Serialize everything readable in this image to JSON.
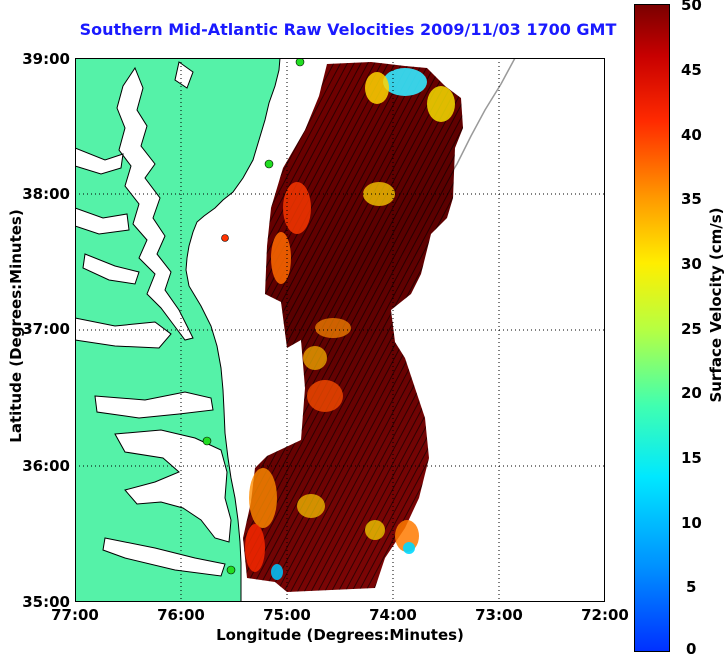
{
  "title": "Southern Mid-Atlantic Raw Velocities 2009/11/03 1700 GMT",
  "x_axis": {
    "label": "Longitude (Degrees:Minutes)",
    "ticks": [
      "77:00",
      "76:00",
      "75:00",
      "74:00",
      "73:00",
      "72:00"
    ]
  },
  "y_axis": {
    "label": "Latitude (Degrees:Minutes)",
    "ticks": [
      "39:00",
      "38:00",
      "37:00",
      "36:00",
      "35:00"
    ]
  },
  "colorbar": {
    "label": "Surface Velocity (cm/s)",
    "ticks": [
      "50",
      "45",
      "40",
      "35",
      "30",
      "25",
      "20",
      "15",
      "10",
      "5",
      "0"
    ],
    "range": [
      0,
      50
    ]
  },
  "map": {
    "lon_range": [
      -77,
      -72
    ],
    "lat_range": [
      35,
      39
    ],
    "land_color": "#55f2a8",
    "coastline_color": "#000000",
    "grid_style": "dotted",
    "stations_color": "#22dd22",
    "station_alt_color": "#ff3300",
    "features": [
      "land",
      "coastline",
      "bathymetry-contour",
      "radar-coverage",
      "velocity-vectors",
      "stations"
    ]
  }
}
